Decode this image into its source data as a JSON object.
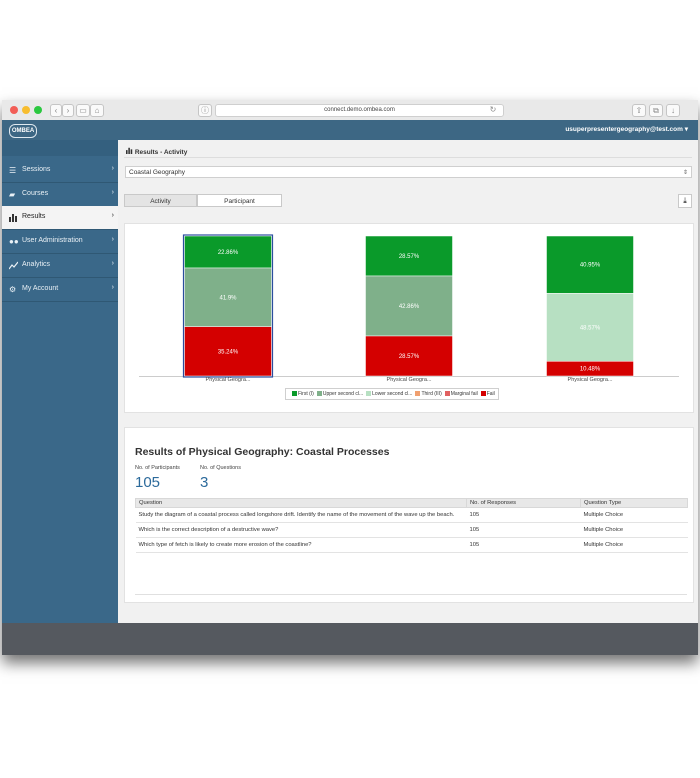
{
  "browser": {
    "url": "connect.demo.ombea.com"
  },
  "app": {
    "logo_text": "OMBEA",
    "user_email": "usuperpresentergeography@test.com"
  },
  "sidebar": {
    "items": [
      {
        "label": "Sessions",
        "icon": "list-icon"
      },
      {
        "label": "Courses",
        "icon": "folder-icon"
      },
      {
        "label": "Results",
        "icon": "bar-chart-icon",
        "active": true
      },
      {
        "label": "User Administration",
        "icon": "users-icon"
      },
      {
        "label": "Analytics",
        "icon": "line-chart-icon"
      },
      {
        "label": "My Account",
        "icon": "gear-icon"
      }
    ]
  },
  "main": {
    "breadcrumb": "Results - Activity",
    "session_select": "Coastal Geography",
    "tabs": [
      {
        "label": "Activity",
        "active": true
      },
      {
        "label": "Participant",
        "active": false
      }
    ]
  },
  "chart_data": {
    "type": "bar",
    "stacked": true,
    "categories": [
      "Physical Geogra...",
      "Physical Geogra...",
      "Physical Geogra..."
    ],
    "series": [
      {
        "name": "First (I)",
        "color": "#0a9a2a",
        "values": [
          22.86,
          28.57,
          40.95
        ]
      },
      {
        "name": "Upper second cl...",
        "color": "#7fb08a",
        "values": [
          41.9,
          42.86,
          0
        ]
      },
      {
        "name": "Lower second cl...",
        "color": "#b7e0c2",
        "values": [
          0,
          0,
          48.57
        ]
      },
      {
        "name": "Third (III)",
        "color": "#f0a070",
        "values": [
          0,
          0,
          0
        ]
      },
      {
        "name": "Marginal fail",
        "color": "#e06060",
        "values": [
          0,
          0,
          0
        ]
      },
      {
        "name": "Fail",
        "color": "#d40000",
        "values": [
          35.24,
          28.57,
          10.48
        ]
      }
    ],
    "value_labels": [
      [
        "22.86%",
        "41.9%",
        "35.24%"
      ],
      [
        "28.57%",
        "42.86%",
        "28.57%"
      ],
      [
        "40.95%",
        "48.57%",
        "10.48%"
      ]
    ],
    "ylim": [
      0,
      100
    ],
    "legend_position": "bottom"
  },
  "results": {
    "title": "Results of Physical Geography: Coastal Processes",
    "participants_label": "No. of Participants",
    "participants_value": "105",
    "questions_label": "No. of Questions",
    "questions_value": "3",
    "columns": [
      "Question",
      "No. of Responses",
      "Question Type"
    ],
    "rows": [
      {
        "question": "Study the diagram of a coastal process called longshore drift. Identify the name of the movement of the wave up the beach.",
        "responses": "105",
        "type": "Multiple Choice"
      },
      {
        "question": "Which is the correct description of a destructive wave?",
        "responses": "105",
        "type": "Multiple Choice"
      },
      {
        "question": "Which type of fetch is likely to create more erosion of the coastline?",
        "responses": "105",
        "type": "Multiple Choice"
      }
    ]
  }
}
